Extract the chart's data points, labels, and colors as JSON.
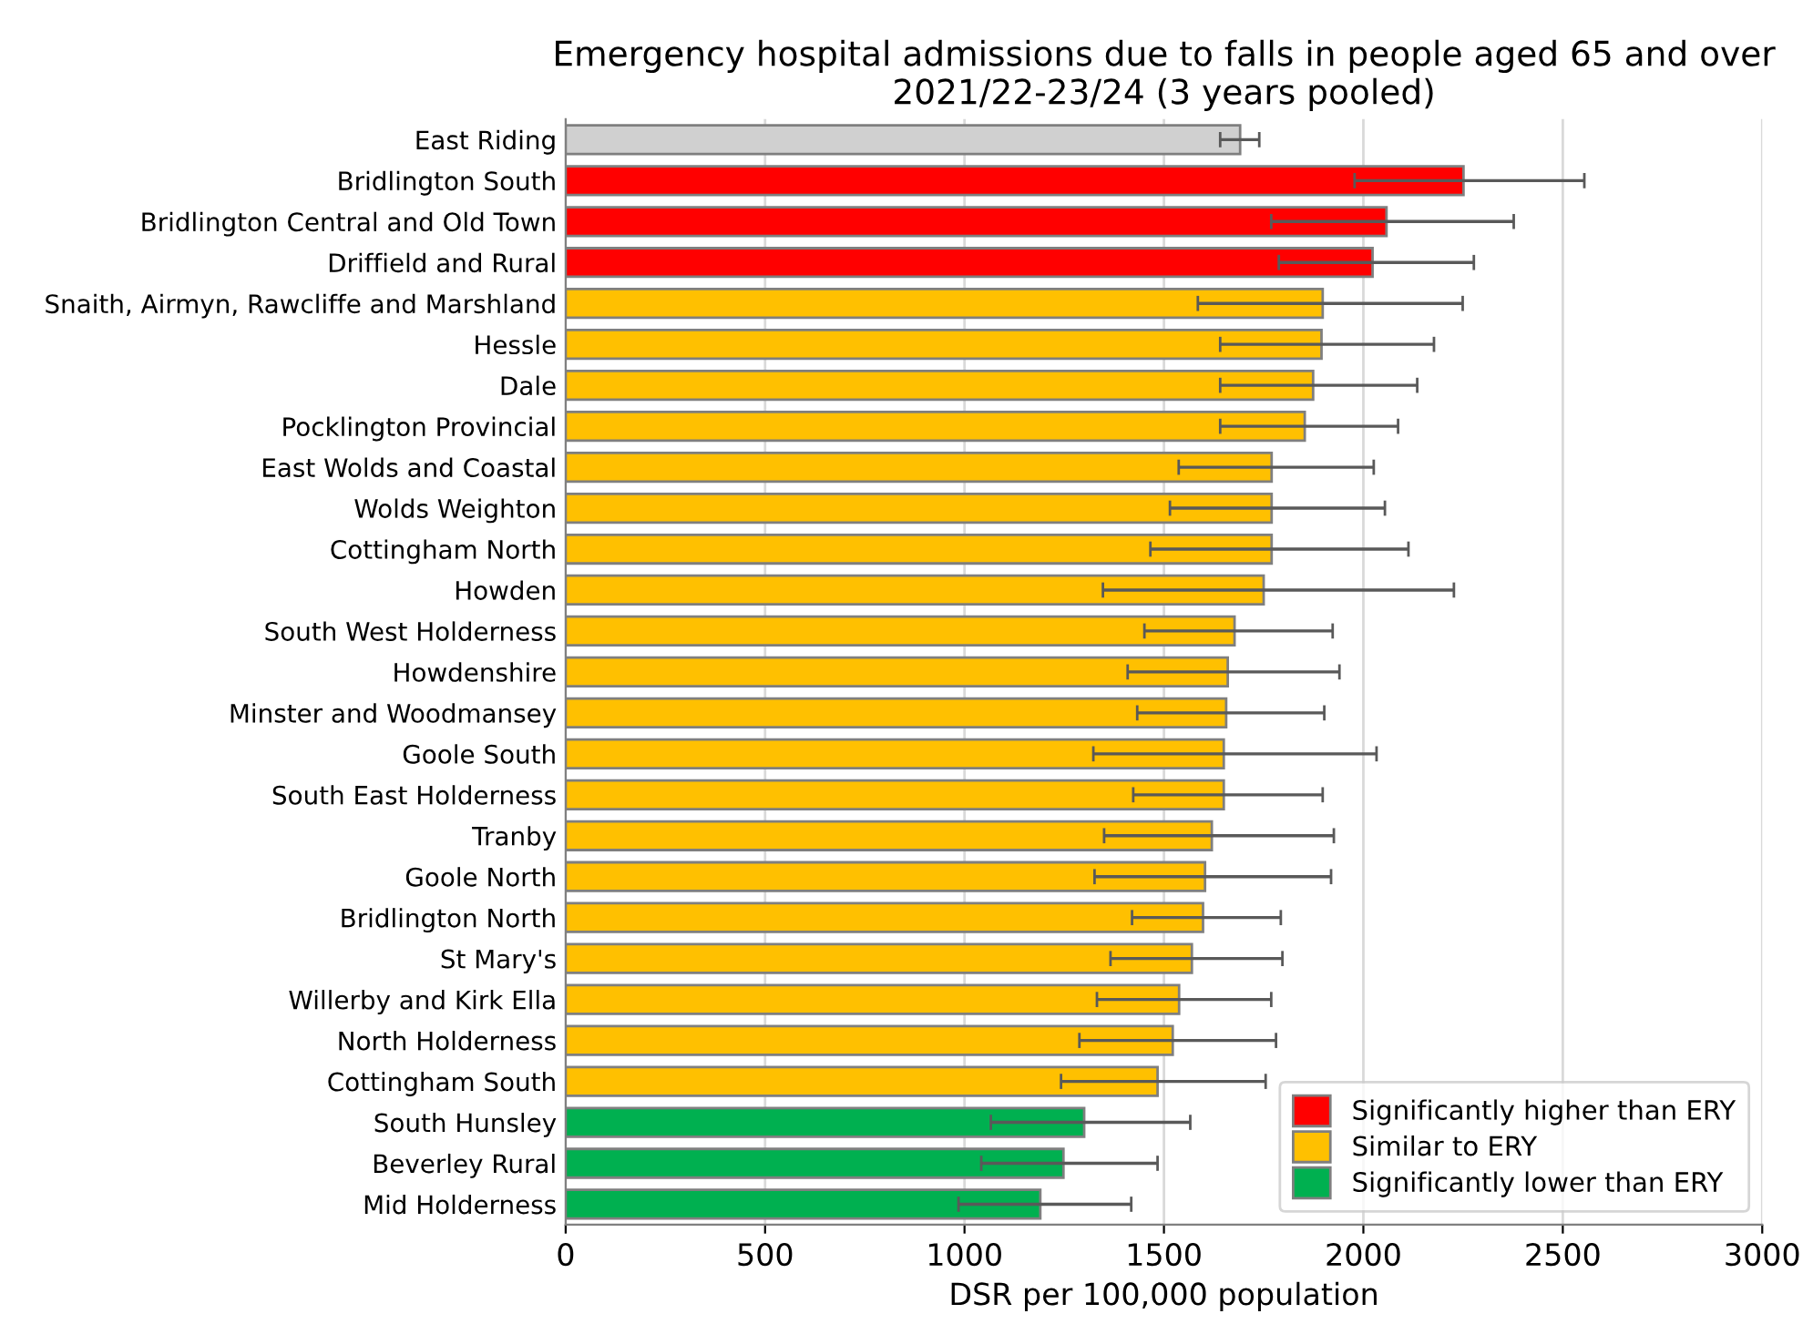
{
  "chart_data": {
    "type": "bar",
    "orientation": "horizontal",
    "title": "Emergency hospital admissions due to falls in people aged 65 and over\n2021/22-23/24 (3 years pooled)",
    "xlabel": "DSR per 100,000 population",
    "categories": [
      "East Riding",
      "Bridlington South",
      "Bridlington Central and Old Town",
      "Driffield and Rural",
      "Snaith, Airmyn, Rawcliffe and Marshland",
      "Hessle",
      "Dale",
      "Pocklington Provincial",
      "East Wolds and Coastal",
      "Wolds Weighton",
      "Cottingham North",
      "Howden",
      "South West Holderness",
      "Howdenshire",
      "Minster and Woodmansey",
      "Goole South",
      "South East Holderness",
      "Tranby",
      "Goole North",
      "Bridlington North",
      "St Mary's",
      "Willerby and Kirk Ella",
      "North Holderness",
      "Cottingham South",
      "South Hunsley",
      "Beverley Rural",
      "Mid Holderness"
    ],
    "series": [
      {
        "color": "#d0d0d0",
        "values": [
          1691,
          null,
          null,
          null,
          null,
          null,
          null,
          null,
          null,
          null,
          null,
          null,
          null,
          null,
          null,
          null,
          null,
          null,
          null,
          null,
          null,
          null,
          null,
          null,
          null,
          null,
          null
        ],
        "errors": [
          [
            1641,
            1739
          ],
          null,
          null,
          null,
          null,
          null,
          null,
          null,
          null,
          null,
          null,
          null,
          null,
          null,
          null,
          null,
          null,
          null,
          null,
          null,
          null,
          null,
          null,
          null,
          null,
          null,
          null
        ]
      },
      {
        "name": "Significantly higher than ERY",
        "color": "#ff0000",
        "values": [
          null,
          2251,
          2058,
          2023,
          null,
          null,
          null,
          null,
          null,
          null,
          null,
          null,
          null,
          null,
          null,
          null,
          null,
          null,
          null,
          null,
          null,
          null,
          null,
          null,
          null,
          null,
          null
        ],
        "errors": [
          null,
          [
            1978,
            2554
          ],
          [
            1769,
            2377
          ],
          [
            1788,
            2277
          ],
          null,
          null,
          null,
          null,
          null,
          null,
          null,
          null,
          null,
          null,
          null,
          null,
          null,
          null,
          null,
          null,
          null,
          null,
          null,
          null,
          null,
          null,
          null
        ]
      },
      {
        "name": "Similar to ERY",
        "color": "#ffc000",
        "values": [
          null,
          null,
          null,
          null,
          1898,
          1895,
          1874,
          1853,
          1770,
          1770,
          1770,
          1750,
          1677,
          1660,
          1656,
          1650,
          1650,
          1620,
          1603,
          1598,
          1570,
          1538,
          1522,
          1484,
          null,
          null,
          null
        ],
        "errors": [
          null,
          null,
          null,
          null,
          [
            1585,
            2249
          ],
          [
            1641,
            2177
          ],
          [
            1641,
            2135
          ],
          [
            1641,
            2087
          ],
          [
            1537,
            2026
          ],
          [
            1515,
            2054
          ],
          [
            1466,
            2113
          ],
          [
            1347,
            2227
          ],
          [
            1451,
            1923
          ],
          [
            1409,
            1940
          ],
          [
            1433,
            1902
          ],
          [
            1323,
            2033
          ],
          [
            1423,
            1898
          ],
          [
            1350,
            1926
          ],
          [
            1326,
            1919
          ],
          [
            1420,
            1793
          ],
          [
            1366,
            1797
          ],
          [
            1332,
            1769
          ],
          [
            1288,
            1781
          ],
          [
            1242,
            1755
          ],
          null,
          null,
          null
        ]
      },
      {
        "name": "Significantly lower than ERY",
        "color": "#00b050",
        "values": [
          null,
          null,
          null,
          null,
          null,
          null,
          null,
          null,
          null,
          null,
          null,
          null,
          null,
          null,
          null,
          null,
          null,
          null,
          null,
          null,
          null,
          null,
          null,
          null,
          1300,
          1248,
          1190
        ],
        "errors": [
          null,
          null,
          null,
          null,
          null,
          null,
          null,
          null,
          null,
          null,
          null,
          null,
          null,
          null,
          null,
          null,
          null,
          null,
          null,
          null,
          null,
          null,
          null,
          null,
          [
            1066,
            1566
          ],
          [
            1042,
            1484
          ],
          [
            985,
            1418
          ]
        ]
      }
    ],
    "xlim": [
      0,
      3000
    ],
    "xticks": [
      0,
      500,
      1000,
      1500,
      2000,
      2500,
      3000
    ],
    "grid": "x",
    "legend": "bottom right"
  }
}
